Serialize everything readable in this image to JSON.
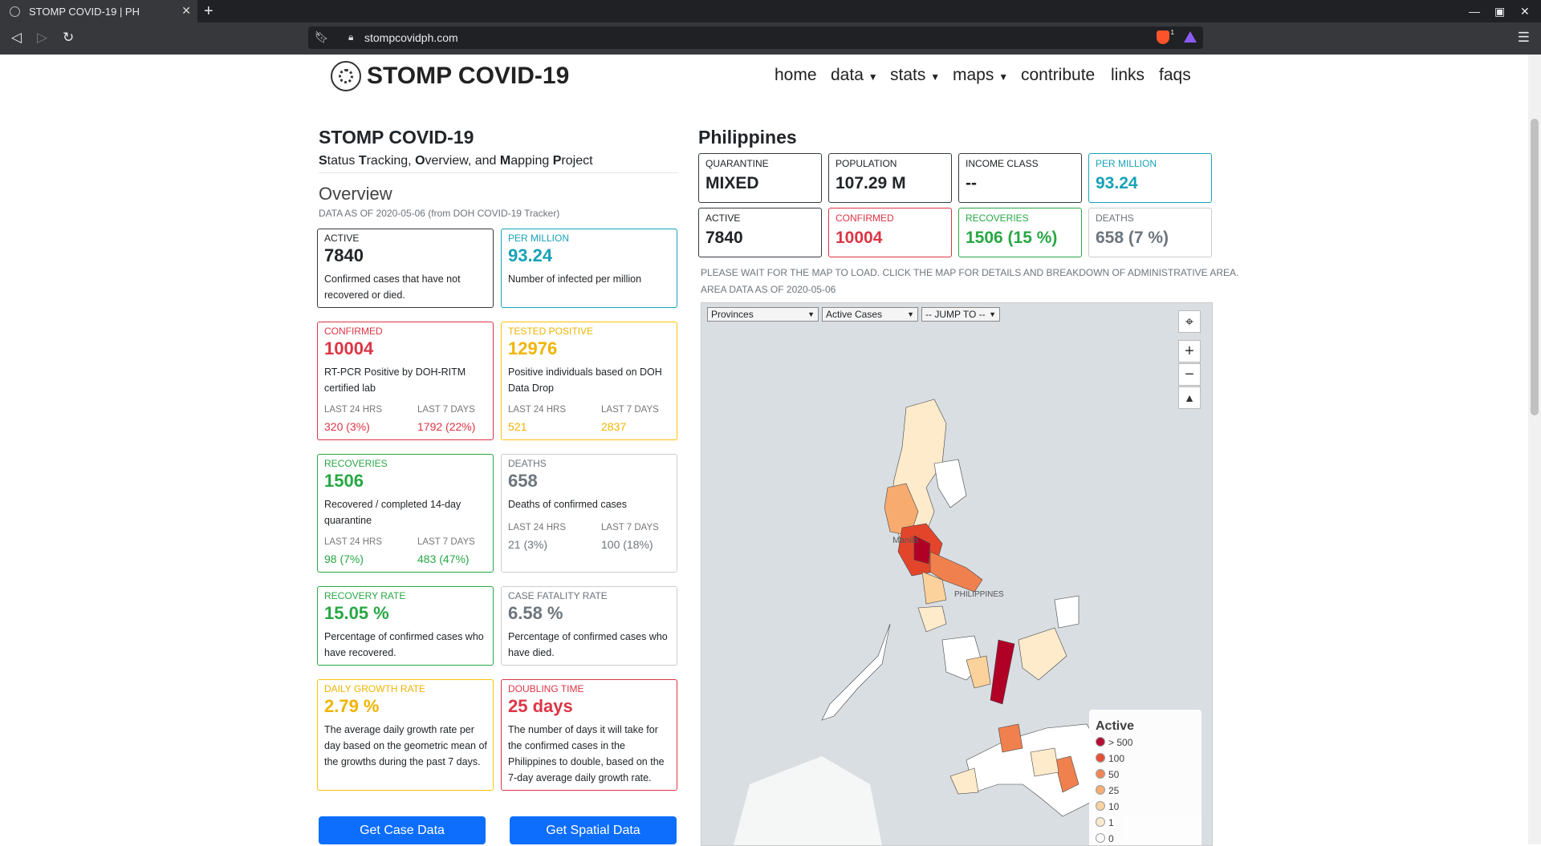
{
  "browser": {
    "tab_title": "STOMP COVID-19 | PH",
    "url": "stompcovidph.com",
    "badge_count": "1"
  },
  "site": {
    "brand": "STOMP COVID-19",
    "nav": {
      "home": "home",
      "data": "data",
      "stats": "stats",
      "maps": "maps",
      "contribute": "contribute",
      "links": "links",
      "faqs": "faqs"
    }
  },
  "left": {
    "title": "STOMP COVID-19",
    "subtitle_parts": [
      "S",
      "tatus ",
      "T",
      "racking, ",
      "O",
      "verview, and ",
      "M",
      "apping ",
      "P",
      "roject"
    ],
    "overview": "Overview",
    "asof": "DATA AS OF 2020-05-06 (from DOH COVID-19 Tracker)",
    "cards": {
      "active": {
        "label": "ACTIVE",
        "value": "7840",
        "desc": "Confirmed cases that have not recovered or died."
      },
      "per_million": {
        "label": "PER MILLION",
        "value": "93.24",
        "desc": "Number of infected per million"
      },
      "confirmed": {
        "label": "CONFIRMED",
        "value": "10004",
        "desc": "RT-PCR Positive by DOH-RITM certified lab",
        "l24_label": "LAST 24 HRS",
        "l7_label": "LAST 7 DAYS",
        "l24": "320 (3%)",
        "l7": "1792 (22%)"
      },
      "tested": {
        "label": "TESTED POSITIVE",
        "value": "12976",
        "desc": "Positive individuals based on DOH Data Drop",
        "l24_label": "LAST 24 HRS",
        "l7_label": "LAST 7 DAYS",
        "l24": "521",
        "l7": "2837"
      },
      "recoveries": {
        "label": "RECOVERIES",
        "value": "1506",
        "desc": "Recovered / completed 14-day quarantine",
        "l24_label": "LAST 24 HRS",
        "l7_label": "LAST 7 DAYS",
        "l24": "98 (7%)",
        "l7": "483 (47%)"
      },
      "deaths": {
        "label": "DEATHS",
        "value": "658",
        "desc": "Deaths of confirmed cases",
        "l24_label": "LAST 24 HRS",
        "l7_label": "LAST 7 DAYS",
        "l24": "21 (3%)",
        "l7": "100 (18%)"
      },
      "recovery_rate": {
        "label": "RECOVERY RATE",
        "value": "15.05 %",
        "desc": "Percentage of confirmed cases who have recovered."
      },
      "fatality_rate": {
        "label": "CASE FATALITY RATE",
        "value": "6.58 %",
        "desc": "Percentage of confirmed cases who have died."
      },
      "growth_rate": {
        "label": "DAILY GROWTH RATE",
        "value": "2.79 %",
        "desc": "The average daily growth rate per day based on the geometric mean of the growths during the past 7 days."
      },
      "doubling": {
        "label": "DOUBLING TIME",
        "value": "25 days",
        "desc": "The number of days it will take for the confirmed cases in the Philippines to double, based on the 7-day average daily growth rate."
      }
    },
    "buttons": {
      "case_data": "Get Case Data",
      "spatial_data": "Get Spatial Data"
    }
  },
  "right": {
    "title": "Philippines",
    "stats": {
      "quarantine": {
        "label": "QUARANTINE",
        "value": "MIXED"
      },
      "population": {
        "label": "POPULATION",
        "value": "107.29 M"
      },
      "income": {
        "label": "INCOME CLASS",
        "value": "--"
      },
      "per_million": {
        "label": "PER MILLION",
        "value": "93.24"
      },
      "active": {
        "label": "ACTIVE",
        "value": "7840"
      },
      "confirmed": {
        "label": "CONFIRMED",
        "value": "10004"
      },
      "recoveries": {
        "label": "RECOVERIES",
        "value": "1506 (15 %)"
      },
      "deaths": {
        "label": "DEATHS",
        "value": "658 (7 %)"
      }
    },
    "note_line1": "PLEASE WAIT FOR THE MAP TO LOAD. CLICK THE MAP FOR DETAILS AND BREAKDOWN OF ADMINISTRATIVE AREA.",
    "note_line2": "AREA DATA AS OF 2020-05-06",
    "map": {
      "level_select": "Provinces",
      "metric_select": "Active Cases",
      "jump_select": "-- JUMP TO --",
      "zoom_in": "+",
      "zoom_out": "−",
      "label_manila": "Manila",
      "label_philippines": "PHILIPPINES",
      "legend": {
        "title": "Active",
        "items": [
          {
            "label": "> 500",
            "color": "#b10026"
          },
          {
            "label": "100",
            "color": "#e3452b"
          },
          {
            "label": "50",
            "color": "#f0814f"
          },
          {
            "label": "25",
            "color": "#f7ab6e"
          },
          {
            "label": "10",
            "color": "#fbd29b"
          },
          {
            "label": "1",
            "color": "#fdebcc"
          },
          {
            "label": "0",
            "color": "#ffffff"
          }
        ]
      }
    }
  },
  "colors": {
    "dark": "#343a40",
    "info": "#17a2b8",
    "danger": "#dc3545",
    "warning": "#ffc107",
    "success": "#28a745",
    "secondary": "#6c757d",
    "primary_button": "#0d6efd"
  }
}
